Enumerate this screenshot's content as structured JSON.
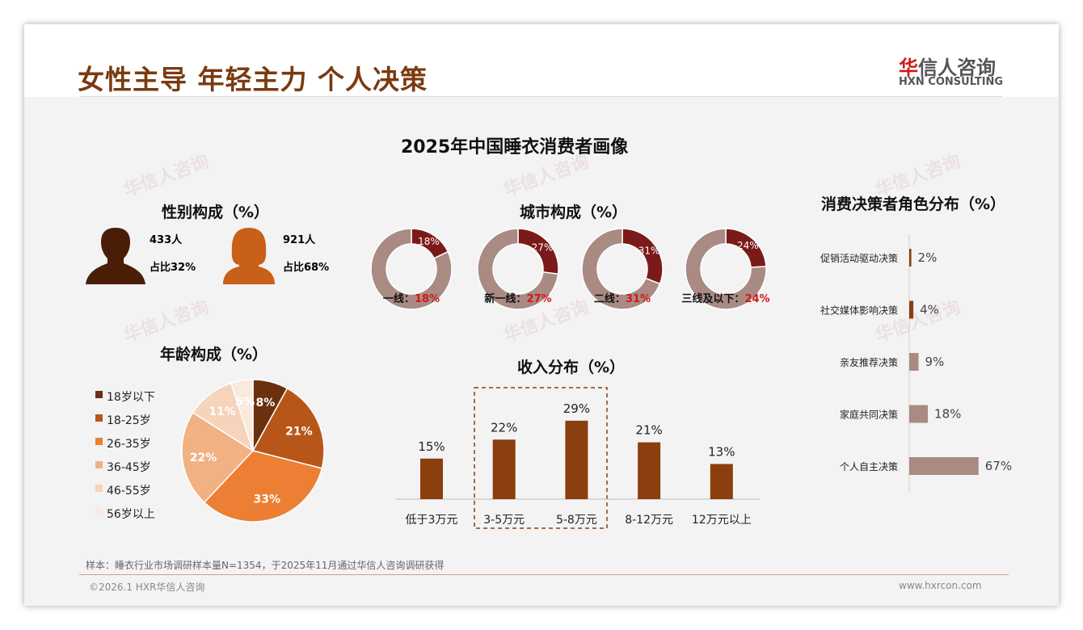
{
  "header": {
    "title": "女性主导 年轻主力 个人决策",
    "logo_cn_red": "华",
    "logo_cn": "信人咨询",
    "logo_en": "HXN CONSULTING"
  },
  "main_title": "2025年中国睡衣消费者画像",
  "gender": {
    "title": "性别构成（%）",
    "male": {
      "count": "433人",
      "share": "占比32%"
    },
    "female": {
      "count": "921人",
      "share": "占比68%"
    },
    "colors": {
      "male": "#4a1e06",
      "female": "#c8601a"
    }
  },
  "chart_data": [
    {
      "type": "pie",
      "title": "年龄构成（%）",
      "categories": [
        "18岁以下",
        "18-25岁",
        "26-35岁",
        "36-45岁",
        "46-55岁",
        "56岁以上"
      ],
      "values": [
        8,
        21,
        33,
        22,
        11,
        5
      ],
      "labels": [
        "8%",
        "21%",
        "33%",
        "22%",
        "11%",
        "5%"
      ],
      "colors": [
        "#6b300e",
        "#b8561a",
        "#ec7f34",
        "#f2b183",
        "#f6d3bb",
        "#fbe9dd"
      ],
      "legend": "left"
    },
    {
      "type": "donut",
      "title": "城市构成（%）",
      "categories": [
        "一线：",
        "新一线：",
        "二线：",
        "三线及以下："
      ],
      "values": [
        18,
        27,
        31,
        24
      ],
      "labels": [
        "18%",
        "27%",
        "31%",
        "24%"
      ],
      "colors": {
        "value": "#7a1a1a",
        "rest": "#a98b83",
        "label": "#d01818"
      }
    },
    {
      "type": "bar",
      "title": "收入分布（%）",
      "categories": [
        "低于3万元",
        "3-5万元",
        "5-8万元",
        "8-12万元",
        "12万元以上"
      ],
      "values": [
        15,
        22,
        29,
        21,
        13
      ],
      "labels": [
        "15%",
        "22%",
        "29%",
        "21%",
        "13%"
      ],
      "highlight": [
        "3-5万元",
        "5-8万元"
      ],
      "color": "#8b3e0e"
    },
    {
      "type": "bar",
      "orientation": "horizontal",
      "title": "消费决策者角色分布（%）",
      "categories": [
        "促销活动驱动决策",
        "社交媒体影响决策",
        "亲友推荐决策",
        "家庭共同决策",
        "个人自主决策"
      ],
      "values": [
        2,
        4,
        9,
        18,
        67
      ],
      "labels": [
        "2%",
        "4%",
        "9%",
        "18%",
        "67%"
      ],
      "colors": [
        "#8b3e0e",
        "#8b3e0e",
        "#a98b83",
        "#a98b83",
        "#a98b83"
      ]
    }
  ],
  "footer": {
    "note": "样本：睡衣行业市场调研样本量N=1354，于2025年11月通过华信人咨询调研获得",
    "copyright": "©2026.1 HXR华信人咨询",
    "website": "www.hxrcon.com"
  },
  "watermark": {
    "cn": "华信人咨询",
    "en": "HXN CONSULTING"
  }
}
